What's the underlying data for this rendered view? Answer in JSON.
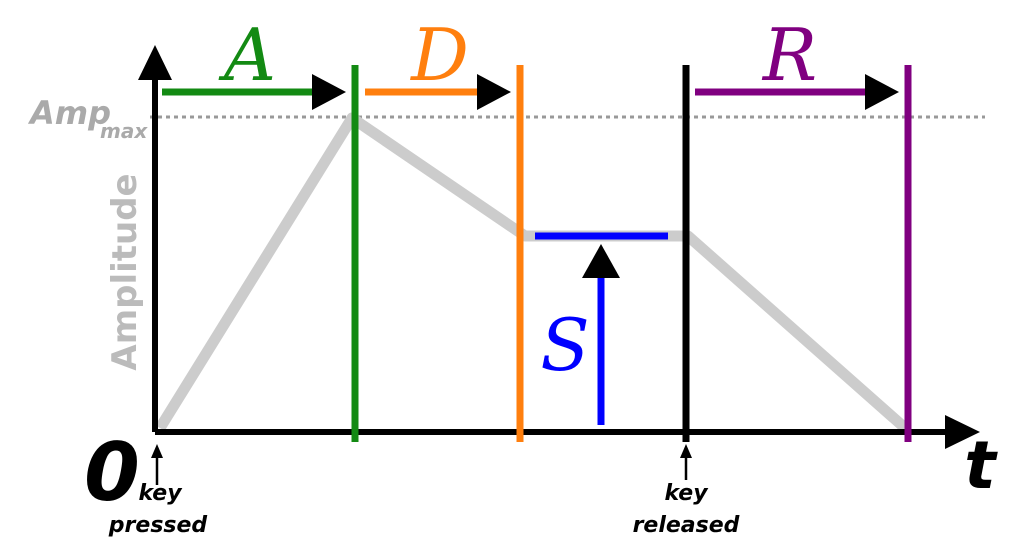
{
  "labels": {
    "attack": "A",
    "decay": "D",
    "sustain": "S",
    "release": "R"
  },
  "axes": {
    "origin": "0",
    "x_axis": "t",
    "y_axis": "Amplitude",
    "amp_max": "Amp",
    "amp_max_subscript": "max"
  },
  "events": {
    "pressed": [
      "key",
      "pressed"
    ],
    "released": [
      "key",
      "released"
    ]
  }
}
